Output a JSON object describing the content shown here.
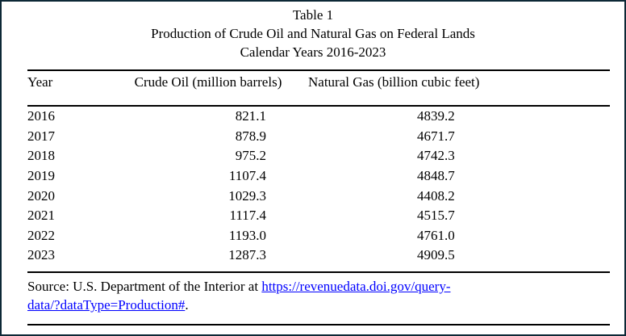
{
  "title": {
    "line1": "Table 1",
    "line2": "Production of Crude Oil and Natural Gas on Federal Lands",
    "line3": "Calendar Years 2016-2023"
  },
  "table": {
    "columns": [
      "Year",
      "Crude Oil (million barrels)",
      "Natural Gas (billion cubic feet)"
    ],
    "rows": [
      [
        "2016",
        "821.1",
        "4839.2"
      ],
      [
        "2017",
        "878.9",
        "4671.7"
      ],
      [
        "2018",
        "975.2",
        "4742.3"
      ],
      [
        "2019",
        "1107.4",
        "4848.7"
      ],
      [
        "2020",
        "1029.3",
        "4408.2"
      ],
      [
        "2021",
        "1117.4",
        "4515.7"
      ],
      [
        "2022",
        "1193.0",
        "4761.0"
      ],
      [
        "2023",
        "1287.3",
        "4909.5"
      ]
    ]
  },
  "source": {
    "prefix": "Source: U.S. Department of the Interior at ",
    "link_line1": "https://revenuedata.doi.gov/query-",
    "link_line2": "data/?dataType=Production#",
    "suffix": "."
  },
  "colors": {
    "frame_border": "#0d2836",
    "rule": "#000000",
    "link": "#0000ff",
    "text": "#000000",
    "background": "#ffffff"
  }
}
